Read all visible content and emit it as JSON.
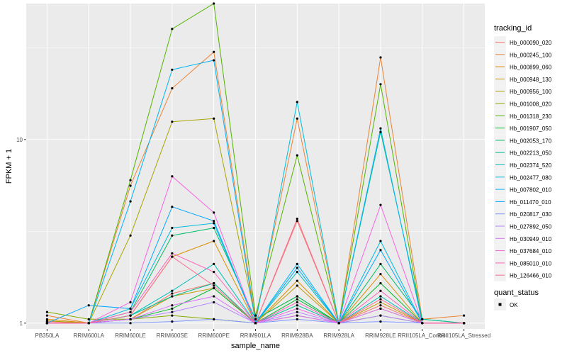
{
  "chart_data": {
    "type": "line",
    "xlabel": "sample_name",
    "ylabel": "FPKM + 1",
    "y_scale": "log",
    "ylim": [
      0.93,
      55
    ],
    "y_ticks": [
      1,
      10
    ],
    "y_tick_labels": [
      "1",
      "10"
    ],
    "grid": true,
    "background_color": "#ebebeb",
    "categories": [
      "PB350LA",
      "RRIM600LA",
      "RRIM600LE",
      "RRIM600SE",
      "RRIM600PE",
      "RRIM901LA",
      "RRIM928BA",
      "RRIM928LA",
      "RRIM928LE",
      "RRII105LA_Control",
      "RRII105LA_Stressed"
    ],
    "legend_title": "tracking_id",
    "legend_position": "right",
    "series": [
      {
        "name": "Hb_000090_020",
        "color": "#F8766D",
        "values": [
          1.02,
          1.0,
          1.05,
          1.45,
          1.65,
          1.0,
          3.6,
          1.0,
          1.25,
          1.0,
          1.0
        ]
      },
      {
        "name": "Hb_000245_100",
        "color": "#EB8335",
        "values": [
          1.1,
          1.0,
          5.6,
          19.0,
          30.0,
          1.05,
          13.0,
          1.0,
          28.0,
          1.05,
          1.1
        ]
      },
      {
        "name": "Hb_000899_060",
        "color": "#DA8F00",
        "values": [
          1.05,
          1.0,
          1.1,
          2.3,
          2.8,
          1.0,
          1.7,
          1.0,
          1.85,
          1.0,
          1.0
        ]
      },
      {
        "name": "Hb_000948_130",
        "color": "#C49A00",
        "values": [
          1.0,
          1.0,
          1.05,
          1.4,
          1.55,
          1.0,
          1.6,
          1.0,
          1.3,
          1.0,
          1.0
        ]
      },
      {
        "name": "Hb_000956_100",
        "color": "#A9A400",
        "values": [
          1.03,
          1.0,
          3.0,
          12.5,
          13.0,
          1.05,
          1.4,
          1.0,
          1.2,
          1.0,
          1.0
        ]
      },
      {
        "name": "Hb_001008_020",
        "color": "#86AC00",
        "values": [
          1.15,
          1.05,
          1.05,
          1.1,
          1.05,
          1.0,
          1.1,
          1.0,
          1.1,
          1.0,
          1.0
        ]
      },
      {
        "name": "Hb_001318_230",
        "color": "#53B400",
        "values": [
          1.0,
          1.0,
          6.0,
          40.0,
          55.0,
          1.1,
          8.2,
          1.0,
          20.0,
          1.0,
          1.0
        ]
      },
      {
        "name": "Hb_001907_050",
        "color": "#00B929",
        "values": [
          1.0,
          1.0,
          1.05,
          1.2,
          1.55,
          1.0,
          1.35,
          1.0,
          1.65,
          1.0,
          1.0
        ]
      },
      {
        "name": "Hb_002053_170",
        "color": "#00BE67",
        "values": [
          1.0,
          1.0,
          1.15,
          3.0,
          3.3,
          1.05,
          1.4,
          1.0,
          2.1,
          1.05,
          1.0
        ]
      },
      {
        "name": "Hb_002213_050",
        "color": "#00C094",
        "values": [
          1.0,
          1.0,
          1.1,
          1.4,
          1.65,
          1.0,
          1.25,
          1.0,
          11.0,
          1.05,
          1.0
        ]
      },
      {
        "name": "Hb_002374_520",
        "color": "#00C0BB",
        "values": [
          1.0,
          1.0,
          1.1,
          1.5,
          2.1,
          1.0,
          1.9,
          1.0,
          1.4,
          1.0,
          1.0
        ]
      },
      {
        "name": "Hb_002477_080",
        "color": "#00BCDC",
        "values": [
          1.0,
          1.0,
          1.2,
          3.3,
          3.5,
          1.0,
          16.0,
          1.0,
          2.8,
          1.0,
          1.0
        ]
      },
      {
        "name": "Hb_007802_010",
        "color": "#00B5F6",
        "values": [
          1.0,
          1.0,
          4.6,
          24.0,
          27.0,
          1.0,
          2.1,
          1.0,
          11.5,
          1.0,
          1.0
        ]
      },
      {
        "name": "Hb_011470_010",
        "color": "#00A8FF",
        "values": [
          1.0,
          1.25,
          1.2,
          4.3,
          3.6,
          1.0,
          2.0,
          1.0,
          2.5,
          1.0,
          1.0
        ]
      },
      {
        "name": "Hb_020817_030",
        "color": "#7C96FF",
        "values": [
          1.0,
          1.0,
          1.0,
          1.02,
          1.05,
          1.0,
          1.05,
          1.0,
          1.02,
          1.0,
          1.0
        ]
      },
      {
        "name": "Hb_027892_050",
        "color": "#B385FF",
        "values": [
          1.0,
          1.0,
          1.05,
          1.15,
          1.3,
          1.0,
          1.15,
          1.0,
          1.1,
          1.0,
          1.0
        ]
      },
      {
        "name": "Hb_030949_010",
        "color": "#DC71FA",
        "values": [
          1.0,
          1.0,
          1.05,
          1.25,
          1.4,
          1.0,
          1.1,
          1.0,
          1.2,
          1.0,
          1.0
        ]
      },
      {
        "name": "Hb_037684_010",
        "color": "#F564E3",
        "values": [
          1.0,
          1.0,
          1.3,
          6.3,
          4.0,
          1.0,
          1.2,
          1.0,
          4.4,
          1.0,
          1.0
        ]
      },
      {
        "name": "Hb_085010_010",
        "color": "#FF62BC",
        "values": [
          1.0,
          1.0,
          1.15,
          2.4,
          1.9,
          1.0,
          1.3,
          1.0,
          1.5,
          1.0,
          1.0
        ]
      },
      {
        "name": "Hb_126466_010",
        "color": "#FF6C90",
        "values": [
          1.0,
          1.0,
          1.1,
          2.3,
          1.6,
          1.0,
          3.7,
          1.0,
          1.35,
          1.0,
          1.0
        ]
      }
    ],
    "shape_legend_title": "quant_status",
    "shape_legend_items": [
      "OK"
    ]
  }
}
